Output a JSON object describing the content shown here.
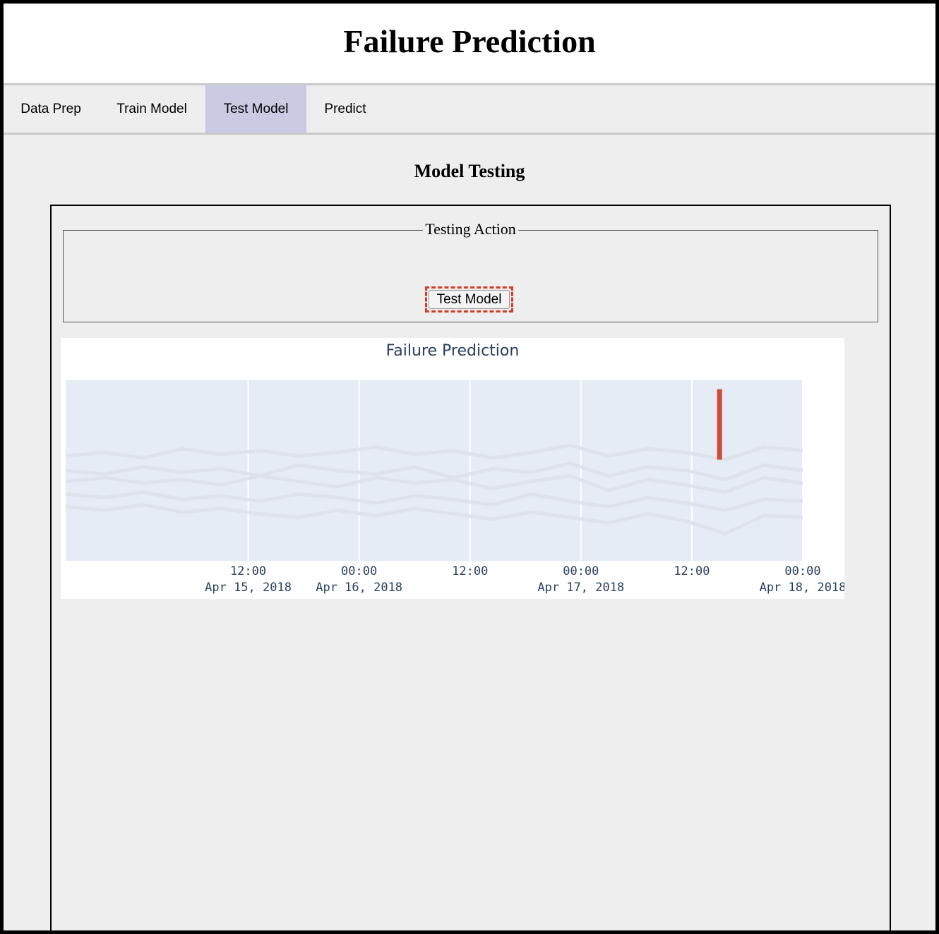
{
  "app": {
    "title": "Failure Prediction"
  },
  "tabs": [
    {
      "label": "Data Prep",
      "active": false
    },
    {
      "label": "Train Model",
      "active": false
    },
    {
      "label": "Test Model",
      "active": true
    },
    {
      "label": "Predict",
      "active": false
    }
  ],
  "main": {
    "section_title": "Model Testing",
    "fieldset_legend": "Testing Action",
    "test_button_label": "Test Model"
  },
  "colors": {
    "active_tab": "#cacae3",
    "plot_background": "#e5ecf6",
    "series_line": "#dde2ea",
    "marker": "#d04a3b",
    "title_text": "#2a3f5f"
  },
  "chart_data": {
    "type": "line",
    "title": "Failure Prediction",
    "x_range": [
      "2018-04-14T16:15",
      "2018-04-18T00:00"
    ],
    "x_ticks": [
      {
        "time": "12:00",
        "date": "Apr 15, 2018",
        "value": "2018-04-15T12:00"
      },
      {
        "time": "00:00",
        "date": "Apr 16, 2018",
        "value": "2018-04-16T00:00"
      },
      {
        "time": "12:00",
        "date": "",
        "value": "2018-04-16T12:00"
      },
      {
        "time": "00:00",
        "date": "Apr 17, 2018",
        "value": "2018-04-17T00:00"
      },
      {
        "time": "12:00",
        "date": "",
        "value": "2018-04-17T12:00"
      },
      {
        "time": "00:00",
        "date": "Apr 18, 2018",
        "value": "2018-04-18T00:00"
      }
    ],
    "series": [
      {
        "values": [
          0.58,
          0.6,
          0.57,
          0.62,
          0.59,
          0.61,
          0.58,
          0.6,
          0.63,
          0.59,
          0.61,
          0.57,
          0.6,
          0.64,
          0.58,
          0.62,
          0.6,
          0.56,
          0.63,
          0.61
        ]
      },
      {
        "values": [
          0.5,
          0.48,
          0.52,
          0.49,
          0.51,
          0.47,
          0.53,
          0.5,
          0.48,
          0.52,
          0.46,
          0.51,
          0.49,
          0.54,
          0.47,
          0.52,
          0.5,
          0.45,
          0.53,
          0.5
        ]
      },
      {
        "values": [
          0.44,
          0.46,
          0.43,
          0.45,
          0.42,
          0.47,
          0.44,
          0.41,
          0.46,
          0.43,
          0.45,
          0.4,
          0.44,
          0.47,
          0.39,
          0.45,
          0.42,
          0.38,
          0.46,
          0.43
        ]
      },
      {
        "values": [
          0.37,
          0.35,
          0.38,
          0.34,
          0.36,
          0.33,
          0.37,
          0.35,
          0.32,
          0.36,
          0.34,
          0.31,
          0.37,
          0.33,
          0.3,
          0.35,
          0.32,
          0.28,
          0.34,
          0.33
        ]
      },
      {
        "values": [
          0.3,
          0.28,
          0.31,
          0.27,
          0.29,
          0.26,
          0.24,
          0.28,
          0.25,
          0.29,
          0.26,
          0.23,
          0.27,
          0.24,
          0.21,
          0.26,
          0.22,
          0.15,
          0.25,
          0.24
        ]
      }
    ],
    "markers": [
      {
        "x": "2018-04-17T15:00",
        "y_from": 0.56,
        "y_to": 0.95,
        "color": "#d04a3b"
      }
    ],
    "grid": true,
    "legend": false
  }
}
